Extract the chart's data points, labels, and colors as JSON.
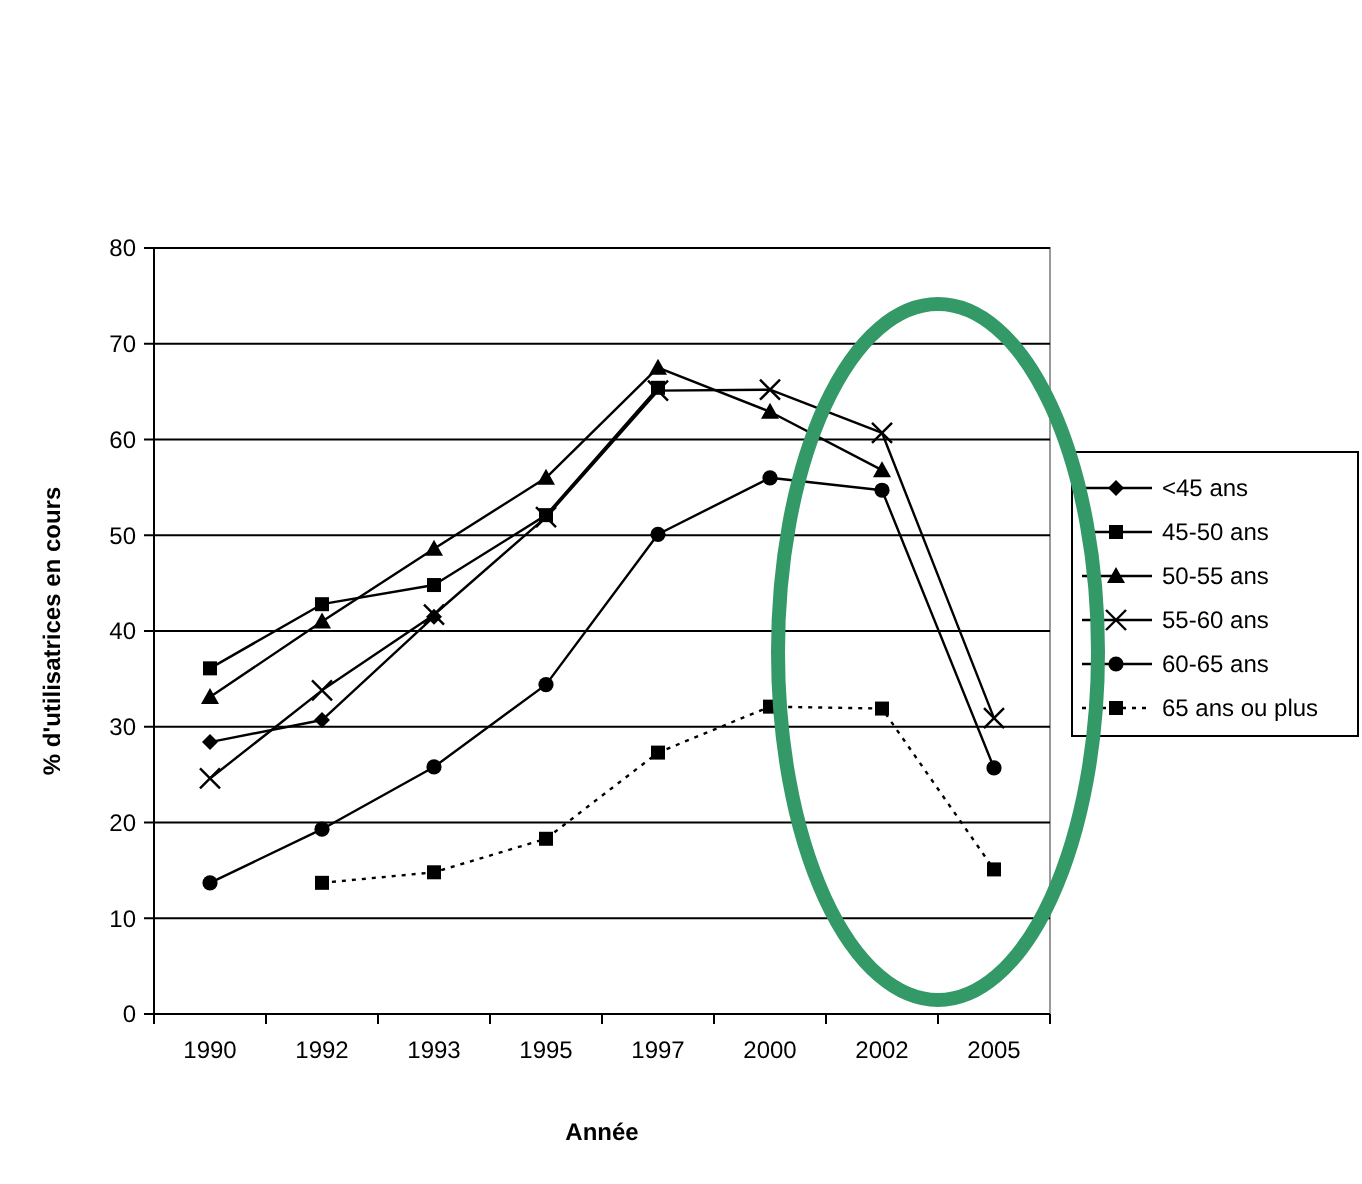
{
  "chart_data": {
    "type": "line",
    "xlabel": "Année",
    "ylabel": "% d'utilisatrices en cours",
    "categories": [
      "1990",
      "1992",
      "1993",
      "1995",
      "1997",
      "2000",
      "2002",
      "2005"
    ],
    "ylim": [
      0,
      80
    ],
    "yticks": [
      0,
      10,
      20,
      30,
      40,
      50,
      60,
      70,
      80
    ],
    "grid": "y",
    "legend": "right",
    "series": [
      {
        "name": "<45 ans",
        "color": "#000000",
        "marker": "diamond",
        "line_style": "solid",
        "values": [
          28.4,
          30.7,
          41.5,
          null,
          null,
          null,
          null,
          null
        ]
      },
      {
        "name": "45-50 ans",
        "color": "#000000",
        "marker": "square",
        "line_style": "solid",
        "values": [
          36.1,
          42.8,
          44.8,
          52.1,
          65.4,
          null,
          null,
          null
        ]
      },
      {
        "name": "50-55 ans",
        "color": "#000000",
        "marker": "triangle",
        "line_style": "solid",
        "values": [
          33.1,
          41,
          48.6,
          56,
          67.5,
          62.9,
          56.8,
          null
        ]
      },
      {
        "name": "55-60 ans",
        "color": "#000000",
        "marker": "cross",
        "line_style": "solid",
        "values": [
          24.6,
          33.8,
          41.7,
          51.9,
          65.1,
          65.2,
          60.7,
          30.9
        ]
      },
      {
        "name": "60-65 ans",
        "color": "#000000",
        "marker": "circle",
        "line_style": "solid",
        "values": [
          13.7,
          19.3,
          25.8,
          34.4,
          50.1,
          56,
          54.7,
          25.7
        ]
      },
      {
        "name": "65 ans ou plus",
        "color": "#000000",
        "marker": "square",
        "line_style": "dotted",
        "values": [
          null,
          13.7,
          14.8,
          18.3,
          27.3,
          32.1,
          31.9,
          15.1
        ]
      }
    ]
  }
}
